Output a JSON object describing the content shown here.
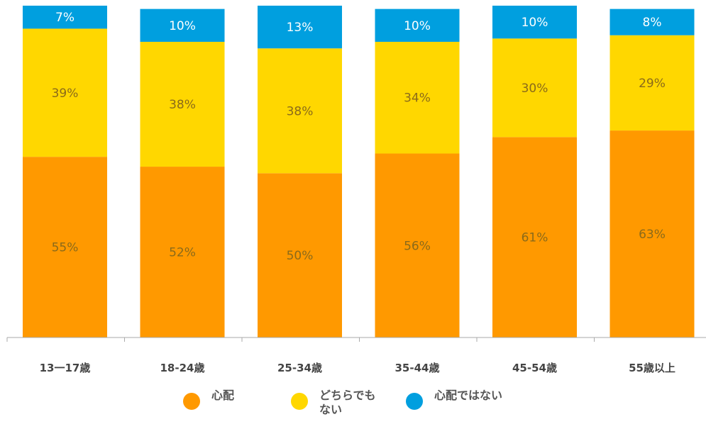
{
  "chart_data": {
    "type": "bar",
    "stacked": true,
    "orientation": "vertical",
    "categories": [
      "13一17歳",
      "18-24歳",
      "25-34歳",
      "35-44歳",
      "45-54歳",
      "55歳以上"
    ],
    "series": [
      {
        "name": "心配",
        "color": "#FF9900",
        "values": [
          55,
          52,
          50,
          56,
          61,
          63
        ]
      },
      {
        "name": "どちらでもない",
        "color": "#FFD700",
        "values": [
          39,
          38,
          38,
          34,
          30,
          29
        ]
      },
      {
        "name": "心配ではない",
        "color": "#009FDF",
        "values": [
          7,
          10,
          13,
          10,
          10,
          8
        ]
      }
    ],
    "value_labels": [
      [
        "55%",
        "52%",
        "50%",
        "56%",
        "61%",
        "63%"
      ],
      [
        "39%",
        "38%",
        "38%",
        "34%",
        "30%",
        "29%"
      ],
      [
        "7%",
        "10%",
        "13%",
        "10%",
        "10%",
        "8%"
      ]
    ],
    "ylim": [
      0,
      101
    ],
    "grid": false,
    "legend_position": "bottom"
  }
}
